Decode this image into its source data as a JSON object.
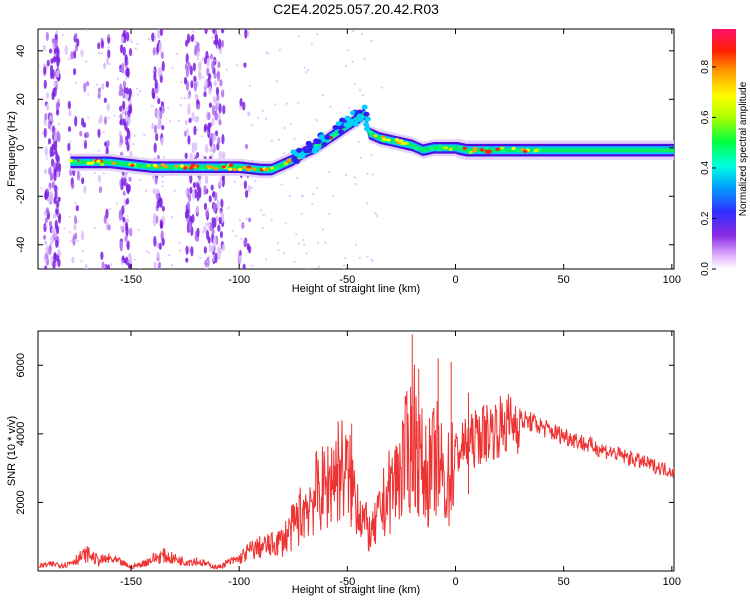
{
  "title": "C2E4.2025.057.20.42.R03",
  "chart_data": [
    {
      "type": "heatmap",
      "name": "spectrogram",
      "xlabel": "Height of straight line (km)",
      "ylabel": "Frequency (Hz)",
      "xlim": [
        -193,
        101
      ],
      "ylim": [
        -50,
        49
      ],
      "xticks": [
        "-150",
        "-100",
        "-50",
        "0",
        "50",
        "100"
      ],
      "xtick_values": [
        -150,
        -100,
        -50,
        0,
        50,
        100
      ],
      "yticks": [
        "-40",
        "-20",
        "0",
        "20",
        "40"
      ],
      "ytick_values": [
        -40,
        -20,
        0,
        20,
        40
      ],
      "ridge": {
        "x": [
          -193,
          -180,
          -170,
          -160,
          -150,
          -140,
          -130,
          -120,
          -110,
          -100,
          -90,
          -85,
          -80,
          -75,
          -70,
          -65,
          -60,
          -55,
          -50,
          -45,
          -42,
          -40,
          -35,
          -30,
          -25,
          -20,
          -15,
          -10,
          -5,
          0,
          5,
          10,
          20,
          30,
          40,
          50,
          60,
          70,
          80,
          90,
          101
        ],
        "y": [
          -6,
          -6,
          -6,
          -6,
          -7,
          -8,
          -8,
          -8,
          -8,
          -8,
          -9,
          -9,
          -7,
          -5,
          -2,
          0,
          3,
          6,
          9,
          12,
          14,
          6,
          4,
          3,
          2,
          1,
          -1,
          0,
          0,
          0,
          -1,
          -1,
          -1,
          -1,
          -1,
          -1,
          -1,
          -1,
          -1,
          -1,
          -1
        ]
      },
      "colorbar": {
        "label": "Normalized spectral amplitude",
        "ticks": [
          "0.0",
          "0.2",
          "0.4",
          "0.6",
          "0.8"
        ],
        "tick_values": [
          0.0,
          0.2,
          0.4,
          0.6,
          0.8
        ],
        "range": [
          0,
          0.95
        ]
      }
    },
    {
      "type": "line",
      "name": "snr",
      "xlabel": "Height of straight line (km)",
      "ylabel": "SNR (10 * v/v)",
      "xlim": [
        -193,
        101
      ],
      "ylim": [
        0,
        7000
      ],
      "xticks": [
        "-150",
        "-100",
        "-50",
        "0",
        "50",
        "100"
      ],
      "xtick_values": [
        -150,
        -100,
        -50,
        0,
        50,
        100
      ],
      "yticks": [
        "2000",
        "4000",
        "6000"
      ],
      "ytick_values": [
        2000,
        4000,
        6000
      ],
      "color": "#ee3333",
      "series": [
        {
          "name": "SNR",
          "x": [
            -193,
            -185,
            -180,
            -175,
            -170,
            -165,
            -160,
            -155,
            -150,
            -145,
            -140,
            -135,
            -130,
            -125,
            -120,
            -115,
            -110,
            -105,
            -100,
            -95,
            -90,
            -85,
            -80,
            -76,
            -72,
            -68,
            -64,
            -60,
            -57,
            -54,
            -51,
            -48,
            -45,
            -42,
            -39,
            -36,
            -33,
            -30,
            -27,
            -24,
            -21,
            -19,
            -17,
            -15,
            -13,
            -11,
            -9,
            -7,
            -5,
            -3,
            -1,
            1,
            3,
            5,
            8,
            12,
            16,
            20,
            25,
            30,
            35,
            40,
            45,
            50,
            55,
            60,
            65,
            70,
            75,
            80,
            85,
            90,
            95,
            101
          ],
          "y": [
            150,
            200,
            180,
            350,
            500,
            300,
            350,
            250,
            120,
            200,
            350,
            450,
            350,
            280,
            300,
            200,
            100,
            250,
            350,
            600,
            700,
            750,
            900,
            1200,
            1600,
            2000,
            2300,
            2400,
            2800,
            3000,
            2900,
            2500,
            2000,
            1400,
            1000,
            1500,
            2000,
            2400,
            2700,
            3200,
            3600,
            4100,
            3300,
            3000,
            2800,
            3000,
            3300,
            3000,
            2500,
            2700,
            3200,
            3500,
            3600,
            3700,
            3800,
            4000,
            4100,
            4200,
            4300,
            4400,
            4350,
            4200,
            4050,
            3950,
            3850,
            3700,
            3600,
            3500,
            3400,
            3300,
            3200,
            3100,
            3000,
            2900
          ]
        }
      ]
    }
  ]
}
